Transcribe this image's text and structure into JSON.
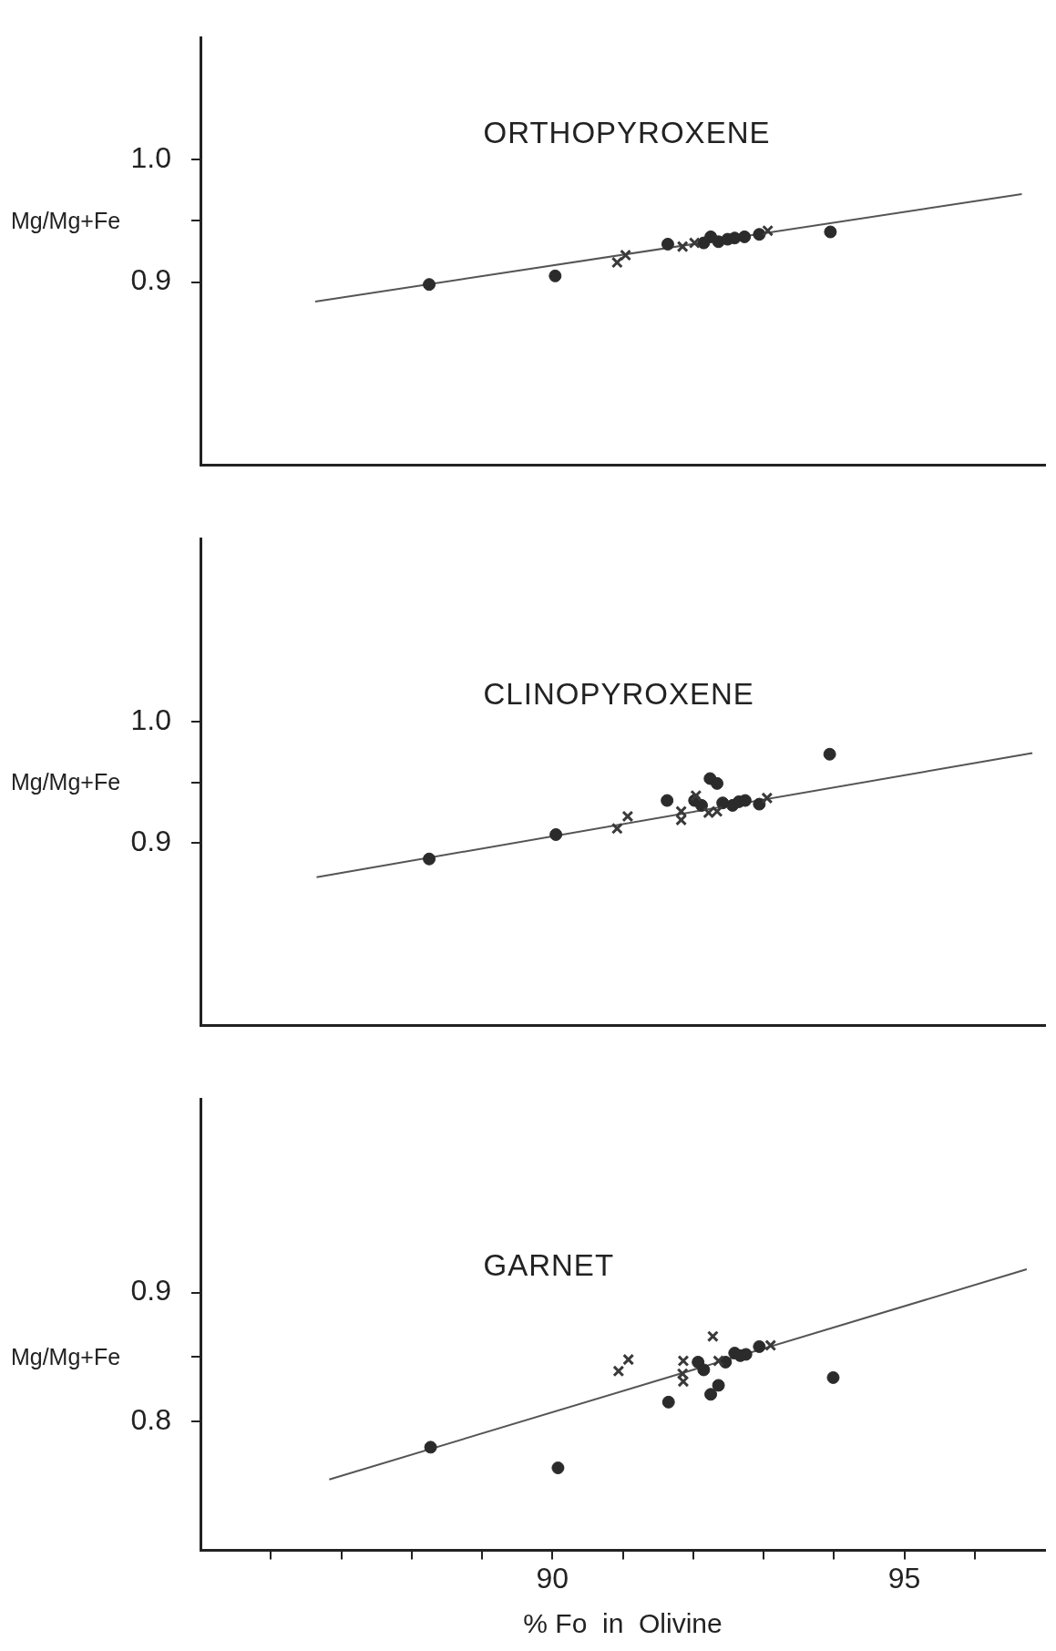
{
  "chart_data": [
    {
      "type": "scatter",
      "title": "ORTHOPYROXENE",
      "ylabel": "Mg/Mg+Fe",
      "xlim": [
        85,
        97
      ],
      "ylim": [
        0.75,
        1.1
      ],
      "yticks": [
        {
          "value": 0.9,
          "label": "0.9"
        },
        {
          "value": 0.95,
          "label": null
        },
        {
          "value": 1,
          "label": "1.0"
        }
      ],
      "tick_labels": "y",
      "grid": false,
      "legend": false,
      "series": [
        {
          "color": "#2b2b2b",
          "marker": "circle",
          "x": [
            88.25,
            90.04,
            91.64,
            92.15,
            92.25,
            92.36,
            92.49,
            92.59,
            92.73,
            92.94,
            93.95
          ],
          "values": [
            0.898,
            0.905,
            0.931,
            0.932,
            0.937,
            0.933,
            0.935,
            0.936,
            0.937,
            0.939,
            0.941
          ]
        },
        {
          "color": "#3a3a3a",
          "marker": "cross",
          "x": [
            90.92,
            91.04,
            91.85,
            92.02,
            93.06
          ],
          "values": [
            0.916,
            0.922,
            0.929,
            0.932,
            0.942
          ]
        },
        {
          "type": "line",
          "color": "#555555",
          "marker": "none",
          "x": [
            86.63,
            96.67
          ],
          "values": [
            0.884,
            0.972
          ]
        }
      ]
    },
    {
      "type": "scatter",
      "title": "CLINOPYROXENE",
      "ylabel": "Mg/Mg+Fe",
      "xlim": [
        85,
        97
      ],
      "ylim": [
        0.75,
        1.15
      ],
      "yticks": [
        {
          "value": 0.9,
          "label": "0.9"
        },
        {
          "value": 0.95,
          "label": null
        },
        {
          "value": 1,
          "label": "1.0"
        }
      ],
      "tick_labels": "y",
      "grid": false,
      "legend": false,
      "series": [
        {
          "color": "#2b2b2b",
          "marker": "circle",
          "x": [
            88.25,
            90.05,
            91.63,
            92.24,
            92.34,
            92.02,
            92.12,
            92.42,
            92.56,
            92.65,
            92.74,
            92.94,
            93.94
          ],
          "values": [
            0.887,
            0.907,
            0.935,
            0.953,
            0.949,
            0.935,
            0.931,
            0.933,
            0.931,
            0.934,
            0.935,
            0.932,
            0.973
          ]
        },
        {
          "color": "#3a3a3a",
          "marker": "cross",
          "x": [
            90.92,
            91.07,
            91.83,
            91.83,
            92.04,
            92.22,
            92.34,
            93.05
          ],
          "values": [
            0.912,
            0.922,
            0.926,
            0.919,
            0.939,
            0.925,
            0.926,
            0.937
          ]
        },
        {
          "type": "line",
          "color": "#555555",
          "marker": "none",
          "x": [
            86.65,
            96.82
          ],
          "values": [
            0.872,
            0.974
          ]
        }
      ]
    },
    {
      "type": "scatter",
      "title": "GARNET",
      "ylabel": "Mg/Mg+Fe",
      "xlabel": "% Fo  in  Olivine",
      "xlim": [
        85,
        97
      ],
      "ylim": [
        0.7,
        1.05
      ],
      "xticks": [
        {
          "value": 86,
          "label": null
        },
        {
          "value": 87,
          "label": null
        },
        {
          "value": 88,
          "label": null
        },
        {
          "value": 89,
          "label": null
        },
        90,
        {
          "value": 91,
          "label": null
        },
        {
          "value": 92,
          "label": null
        },
        {
          "value": 93,
          "label": null
        },
        {
          "value": 94,
          "label": null
        },
        95,
        {
          "value": 96,
          "label": null
        }
      ],
      "yticks": [
        {
          "value": 0.8,
          "label": "0.8"
        },
        {
          "value": 0.85,
          "label": null
        },
        {
          "value": 0.9,
          "label": "0.9"
        }
      ],
      "grid": false,
      "legend": false,
      "series": [
        {
          "color": "#2b2b2b",
          "marker": "circle",
          "x": [
            88.27,
            90.08,
            91.65,
            92.07,
            92.15,
            92.25,
            92.36,
            92.46,
            92.59,
            92.67,
            92.75,
            92.94,
            93.99
          ],
          "values": [
            0.78,
            0.764,
            0.815,
            0.846,
            0.84,
            0.821,
            0.828,
            0.846,
            0.853,
            0.851,
            0.852,
            0.858,
            0.834
          ]
        },
        {
          "color": "#3a3a3a",
          "marker": "cross",
          "x": [
            90.94,
            91.08,
            91.86,
            91.85,
            91.86,
            92.28,
            92.36,
            93.1
          ],
          "values": [
            0.839,
            0.848,
            0.847,
            0.837,
            0.831,
            0.866,
            0.847,
            0.859
          ]
        },
        {
          "type": "line",
          "color": "#555555",
          "marker": "none",
          "x": [
            86.83,
            96.74
          ],
          "values": [
            0.755,
            0.918
          ]
        }
      ]
    }
  ]
}
